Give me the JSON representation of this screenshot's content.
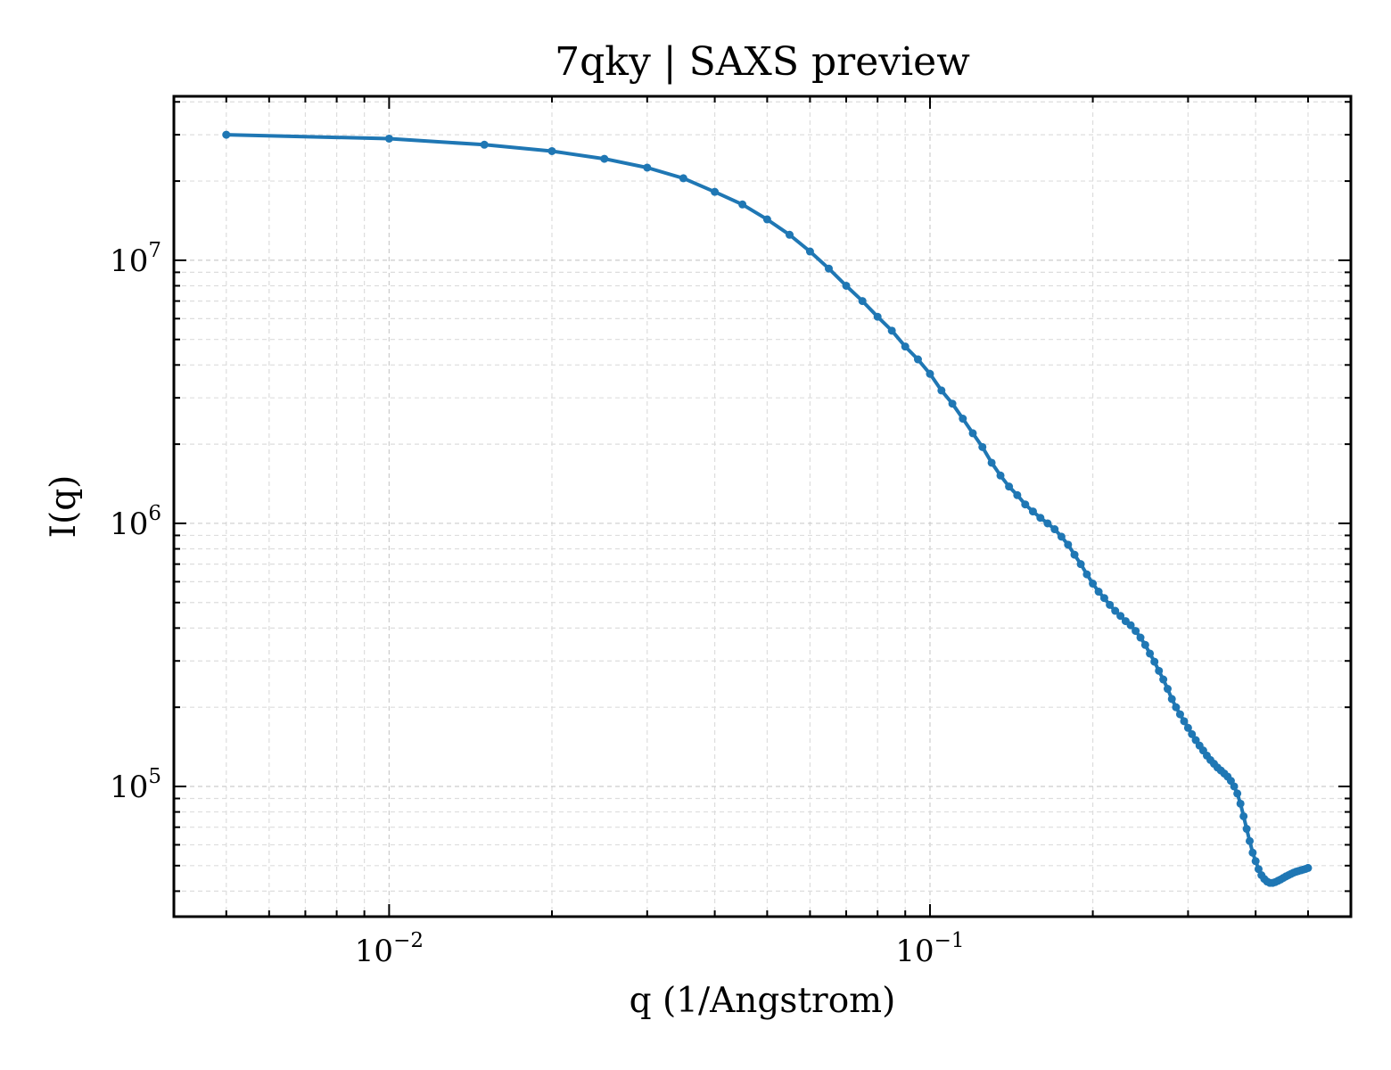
{
  "chart_data": {
    "type": "line",
    "title": "7qky | SAXS preview",
    "xlabel": "q (1/Angstrom)",
    "ylabel": "I(q)",
    "x_scale": "log",
    "y_scale": "log",
    "xlim": [
      0.004,
      0.6
    ],
    "ylim": [
      32000,
      42000000
    ],
    "x_ticks": [
      {
        "value": 0.01,
        "label": "10^-2"
      },
      {
        "value": 0.1,
        "label": "10^-1"
      }
    ],
    "y_ticks": [
      {
        "value": 100000,
        "label": "10^5"
      },
      {
        "value": 1000000,
        "label": "10^6"
      },
      {
        "value": 10000000,
        "label": "10^7"
      }
    ],
    "grid": true,
    "legend": false,
    "series_color": "#1f77b4",
    "series": [
      {
        "x": [
          0.005,
          0.01,
          0.015,
          0.02,
          0.025,
          0.03,
          0.035,
          0.04,
          0.045,
          0.05,
          0.055,
          0.06,
          0.065,
          0.07,
          0.075,
          0.08,
          0.085,
          0.09,
          0.095,
          0.1,
          0.105,
          0.11,
          0.115,
          0.12,
          0.125,
          0.13,
          0.135,
          0.14,
          0.145,
          0.15,
          0.155,
          0.16,
          0.165,
          0.17,
          0.175,
          0.18,
          0.185,
          0.19,
          0.195,
          0.2,
          0.205,
          0.21,
          0.215,
          0.22,
          0.225,
          0.23,
          0.235,
          0.24,
          0.245,
          0.25,
          0.255,
          0.26,
          0.265,
          0.27,
          0.275,
          0.28,
          0.285,
          0.29,
          0.295,
          0.3,
          0.305,
          0.31,
          0.315,
          0.32,
          0.325,
          0.33,
          0.335,
          0.34,
          0.345,
          0.35,
          0.355,
          0.36,
          0.365,
          0.37,
          0.375,
          0.38,
          0.385,
          0.39,
          0.395,
          0.4,
          0.405,
          0.41,
          0.415,
          0.42,
          0.425,
          0.43,
          0.435,
          0.44,
          0.445,
          0.45,
          0.455,
          0.46,
          0.465,
          0.47,
          0.475,
          0.48,
          0.485,
          0.49,
          0.495,
          0.5
        ],
        "y": [
          30000000,
          29000000,
          27500000,
          26000000,
          24300000,
          22500000,
          20500000,
          18200000,
          16300000,
          14300000,
          12500000,
          10800000,
          9300000,
          8000000,
          7000000,
          6100000,
          5400000,
          4700000,
          4200000,
          3700000,
          3200000,
          2850000,
          2500000,
          2200000,
          1950000,
          1700000,
          1520000,
          1380000,
          1280000,
          1180000,
          1110000,
          1050000,
          1000000,
          950000,
          890000,
          830000,
          760000,
          700000,
          640000,
          590000,
          550000,
          520000,
          490000,
          465000,
          445000,
          425000,
          410000,
          390000,
          368000,
          345000,
          320000,
          298000,
          275000,
          255000,
          235000,
          215000,
          200000,
          188000,
          177000,
          167000,
          158000,
          150000,
          143000,
          137000,
          131000,
          126000,
          122000,
          118000,
          115000,
          112000,
          109000,
          105000,
          100000,
          94000,
          86000,
          77000,
          69000,
          62000,
          56000,
          52000,
          48500,
          46000,
          44500,
          43500,
          43000,
          43000,
          43300,
          43800,
          44300,
          44900,
          45500,
          46000,
          46500,
          47000,
          47400,
          47700,
          48000,
          48300,
          48600,
          49000
        ]
      }
    ]
  }
}
